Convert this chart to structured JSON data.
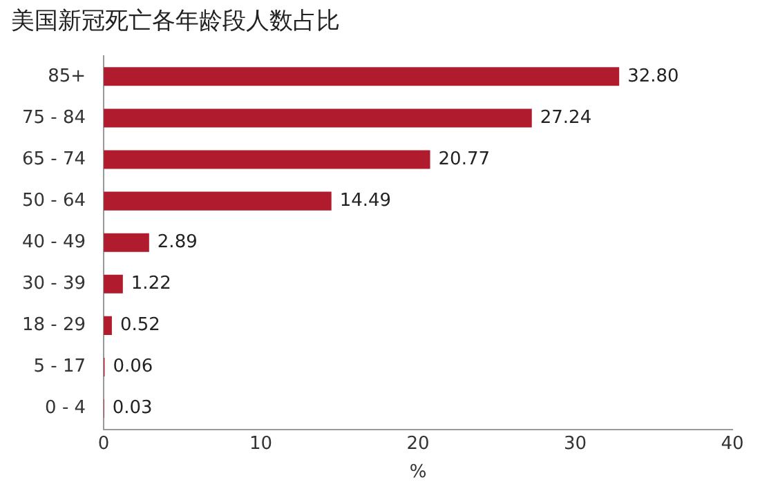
{
  "chart_data": {
    "type": "bar",
    "orientation": "horizontal",
    "title": "美国新冠死亡各年龄段人数占比",
    "xlabel": "%",
    "categories": [
      "85+",
      "75 - 84",
      "65 - 74",
      "50 - 64",
      "40 - 49",
      "30 - 39",
      "18 - 29",
      "5 - 17",
      "0 - 4"
    ],
    "values": [
      32.8,
      27.24,
      20.77,
      14.49,
      2.89,
      1.22,
      0.52,
      0.06,
      0.03
    ],
    "value_labels": [
      "32.80",
      "27.24",
      "20.77",
      "14.49",
      "2.89",
      "1.22",
      "0.52",
      "0.06",
      "0.03"
    ],
    "color": "#b01c2e",
    "xlim": [
      0,
      40
    ],
    "xticks": [
      0,
      10,
      20,
      30,
      40
    ],
    "grid": false,
    "legend": false
  }
}
